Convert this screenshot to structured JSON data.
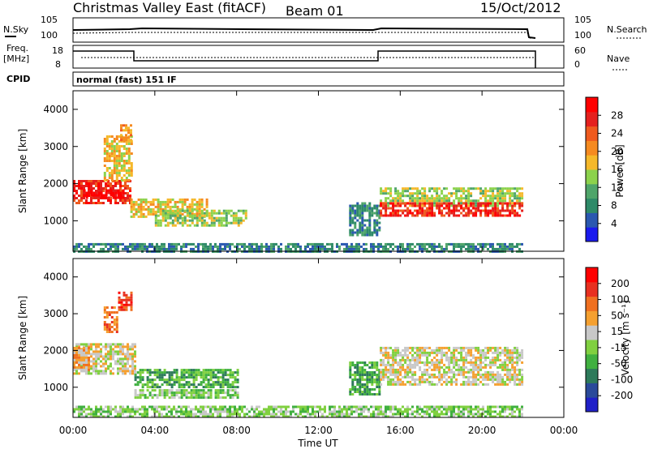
{
  "header": {
    "title": "Christmas Valley East (fitACF)",
    "beam": "Beam 01",
    "date": "15/Oct/2012"
  },
  "param_panels": {
    "nsky_label": "N.Sky",
    "nsearch_label": "N.Search",
    "freq_label_line1": "Freq.",
    "freq_label_line2": "[MHz]",
    "nave_label": "Nave",
    "cpid_label": "CPID",
    "cpid_value": "normal (fast) 151 IF",
    "nsky_ticks": [
      "10^5",
      "10^0"
    ],
    "nsearch_ticks": [
      "10^5",
      "10^0"
    ],
    "freq_ticks": [
      "18",
      "8"
    ],
    "nave_ticks": [
      "60",
      "0"
    ]
  },
  "chart_data": [
    {
      "type": "heatmap",
      "name": "power",
      "ylabel": "Slant Range [km]",
      "xlabel": "",
      "x_ticks": [
        "00:00",
        "04:00",
        "08:00",
        "12:00",
        "16:00",
        "20:00",
        "00:00"
      ],
      "y_ticks": [
        "1000",
        "2000",
        "3000",
        "4000"
      ],
      "xlim_hours": [
        0,
        24
      ],
      "ylim_km": [
        180,
        4500
      ],
      "colorbar": {
        "label": "Power [dB]",
        "ticks": [
          "4",
          "8",
          "12",
          "16",
          "20",
          "24",
          "28"
        ],
        "colors": [
          "#1a1aee",
          "#2a58b0",
          "#2e8a68",
          "#4fa56a",
          "#8cd24c",
          "#f5b82a",
          "#f58a20",
          "#ef5a1e",
          "#e5201e",
          "#ff0000"
        ]
      },
      "features": [
        {
          "t0": 0.0,
          "t1": 2.8,
          "r0": 1500,
          "r1": 2100,
          "level": 8
        },
        {
          "t0": 0.5,
          "t1": 2.5,
          "r0": 1650,
          "r1": 1850,
          "level": 9
        },
        {
          "t0": 1.5,
          "t1": 2.9,
          "r0": 2100,
          "r1": 3300,
          "level": 5
        },
        {
          "t0": 2.3,
          "t1": 2.8,
          "r0": 3200,
          "r1": 3600,
          "level": 6
        },
        {
          "t0": 2.8,
          "t1": 6.5,
          "r0": 1100,
          "r1": 1600,
          "level": 5
        },
        {
          "t0": 4.0,
          "t1": 8.5,
          "r0": 900,
          "r1": 1300,
          "level": 4
        },
        {
          "t0": 13.5,
          "t1": 15.0,
          "r0": 600,
          "r1": 1500,
          "level": 2
        },
        {
          "t0": 15.0,
          "t1": 22.0,
          "r0": 1400,
          "r1": 1900,
          "level": 4
        },
        {
          "t0": 15.0,
          "t1": 22.0,
          "r0": 1150,
          "r1": 1500,
          "level": 8
        },
        {
          "t0": 0.0,
          "t1": 22.0,
          "r0": 200,
          "r1": 400,
          "level": 2
        }
      ]
    },
    {
      "type": "heatmap",
      "name": "velocity",
      "ylabel": "Slant Range [km]",
      "xlabel": "Time UT",
      "x_ticks": [
        "00:00",
        "04:00",
        "08:00",
        "12:00",
        "16:00",
        "20:00",
        "00:00"
      ],
      "y_ticks": [
        "1000",
        "2000",
        "3000",
        "4000"
      ],
      "xlim_hours": [
        0,
        24
      ],
      "ylim_km": [
        180,
        4500
      ],
      "colorbar": {
        "label": "Velocity [m s^-1]",
        "ticks": [
          "200",
          "100",
          "50",
          "15",
          "-15",
          "-50",
          "-100",
          "-200"
        ],
        "colors": [
          "#2020c8",
          "#2a4a9a",
          "#2d7a5a",
          "#40b040",
          "#80d040",
          "#c8c8c8",
          "#f5a030",
          "#f07020",
          "#e83020",
          "#ff0000"
        ]
      },
      "features": [
        {
          "t0": 0.0,
          "t1": 3.0,
          "r0": 1400,
          "r1": 2200,
          "level": 5
        },
        {
          "t0": 0.0,
          "t1": 0.8,
          "r0": 1500,
          "r1": 2100,
          "level": 6
        },
        {
          "t0": 2.2,
          "t1": 2.8,
          "r0": 3100,
          "r1": 3600,
          "level": 8
        },
        {
          "t0": 1.5,
          "t1": 2.2,
          "r0": 2500,
          "r1": 3200,
          "level": 7
        },
        {
          "t0": 3.0,
          "t1": 8.0,
          "r0": 1000,
          "r1": 1500,
          "level": 3
        },
        {
          "t0": 3.0,
          "t1": 8.0,
          "r0": 700,
          "r1": 950,
          "level": 4
        },
        {
          "t0": 13.5,
          "t1": 15.0,
          "r0": 800,
          "r1": 1700,
          "level": 3
        },
        {
          "t0": 15.0,
          "t1": 22.0,
          "r0": 1100,
          "r1": 2100,
          "level": 5
        },
        {
          "t0": 0.0,
          "t1": 22.0,
          "r0": 200,
          "r1": 500,
          "level": 4
        }
      ]
    }
  ]
}
